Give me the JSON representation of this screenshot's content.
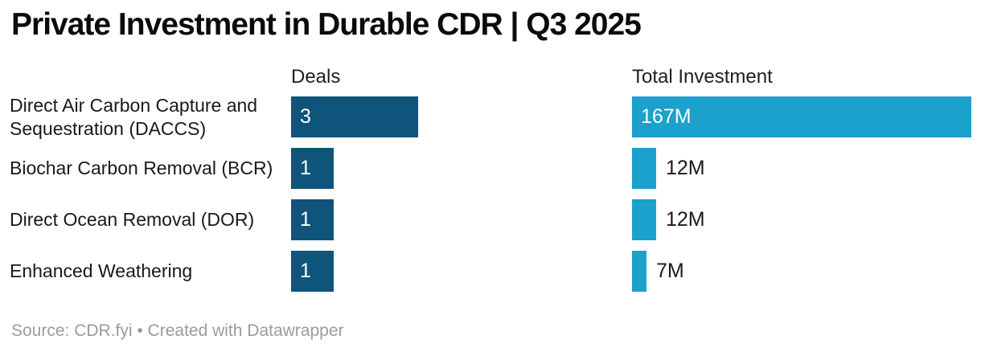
{
  "title": "Private Investment in Durable CDR | Q3 2025",
  "column_headers": {
    "deals": "Deals",
    "investment": "Total Investment"
  },
  "footer": "Source: CDR.fyi • Created with Datawrapper",
  "colors": {
    "deals_bar": "#0f547a",
    "investment_bar": "#1ba1cb",
    "label_inside": "#ffffff",
    "label_outside": "#18191c",
    "text": "#18191c",
    "title_text": "#0b0b0d",
    "footer_text": "#9b9b9b",
    "background": "#ffffff"
  },
  "chart_data": {
    "type": "bar",
    "title": "Private Investment in Durable CDR | Q3 2025",
    "orientation": "horizontal",
    "grid": false,
    "legend_position": "column-headers-above",
    "categories": [
      "Direct Air Carbon Capture and Sequestration (DACCS)",
      "Biochar Carbon Removal (BCR)",
      "Direct Ocean Removal (DOR)",
      "Enhanced Weathering"
    ],
    "series": [
      {
        "name": "Deals",
        "values": [
          3,
          1,
          1,
          1
        ],
        "xlim": [
          0,
          3
        ]
      },
      {
        "name": "Total Investment",
        "values": [
          167,
          12,
          12,
          7
        ],
        "unit": "M",
        "xlim": [
          0,
          167
        ]
      }
    ],
    "rows": [
      {
        "label": "Direct Air Carbon Capture and Sequestration (DACCS)",
        "deals": 3,
        "deals_label": "3",
        "investment": 167,
        "investment_label": "167M"
      },
      {
        "label": "Biochar Carbon Removal (BCR)",
        "deals": 1,
        "deals_label": "1",
        "investment": 12,
        "investment_label": "12M"
      },
      {
        "label": "Direct Ocean Removal (DOR)",
        "deals": 1,
        "deals_label": "1",
        "investment": 12,
        "investment_label": "12M"
      },
      {
        "label": "Enhanced Weathering",
        "deals": 1,
        "deals_label": "1",
        "investment": 7,
        "investment_label": "7M"
      }
    ]
  }
}
